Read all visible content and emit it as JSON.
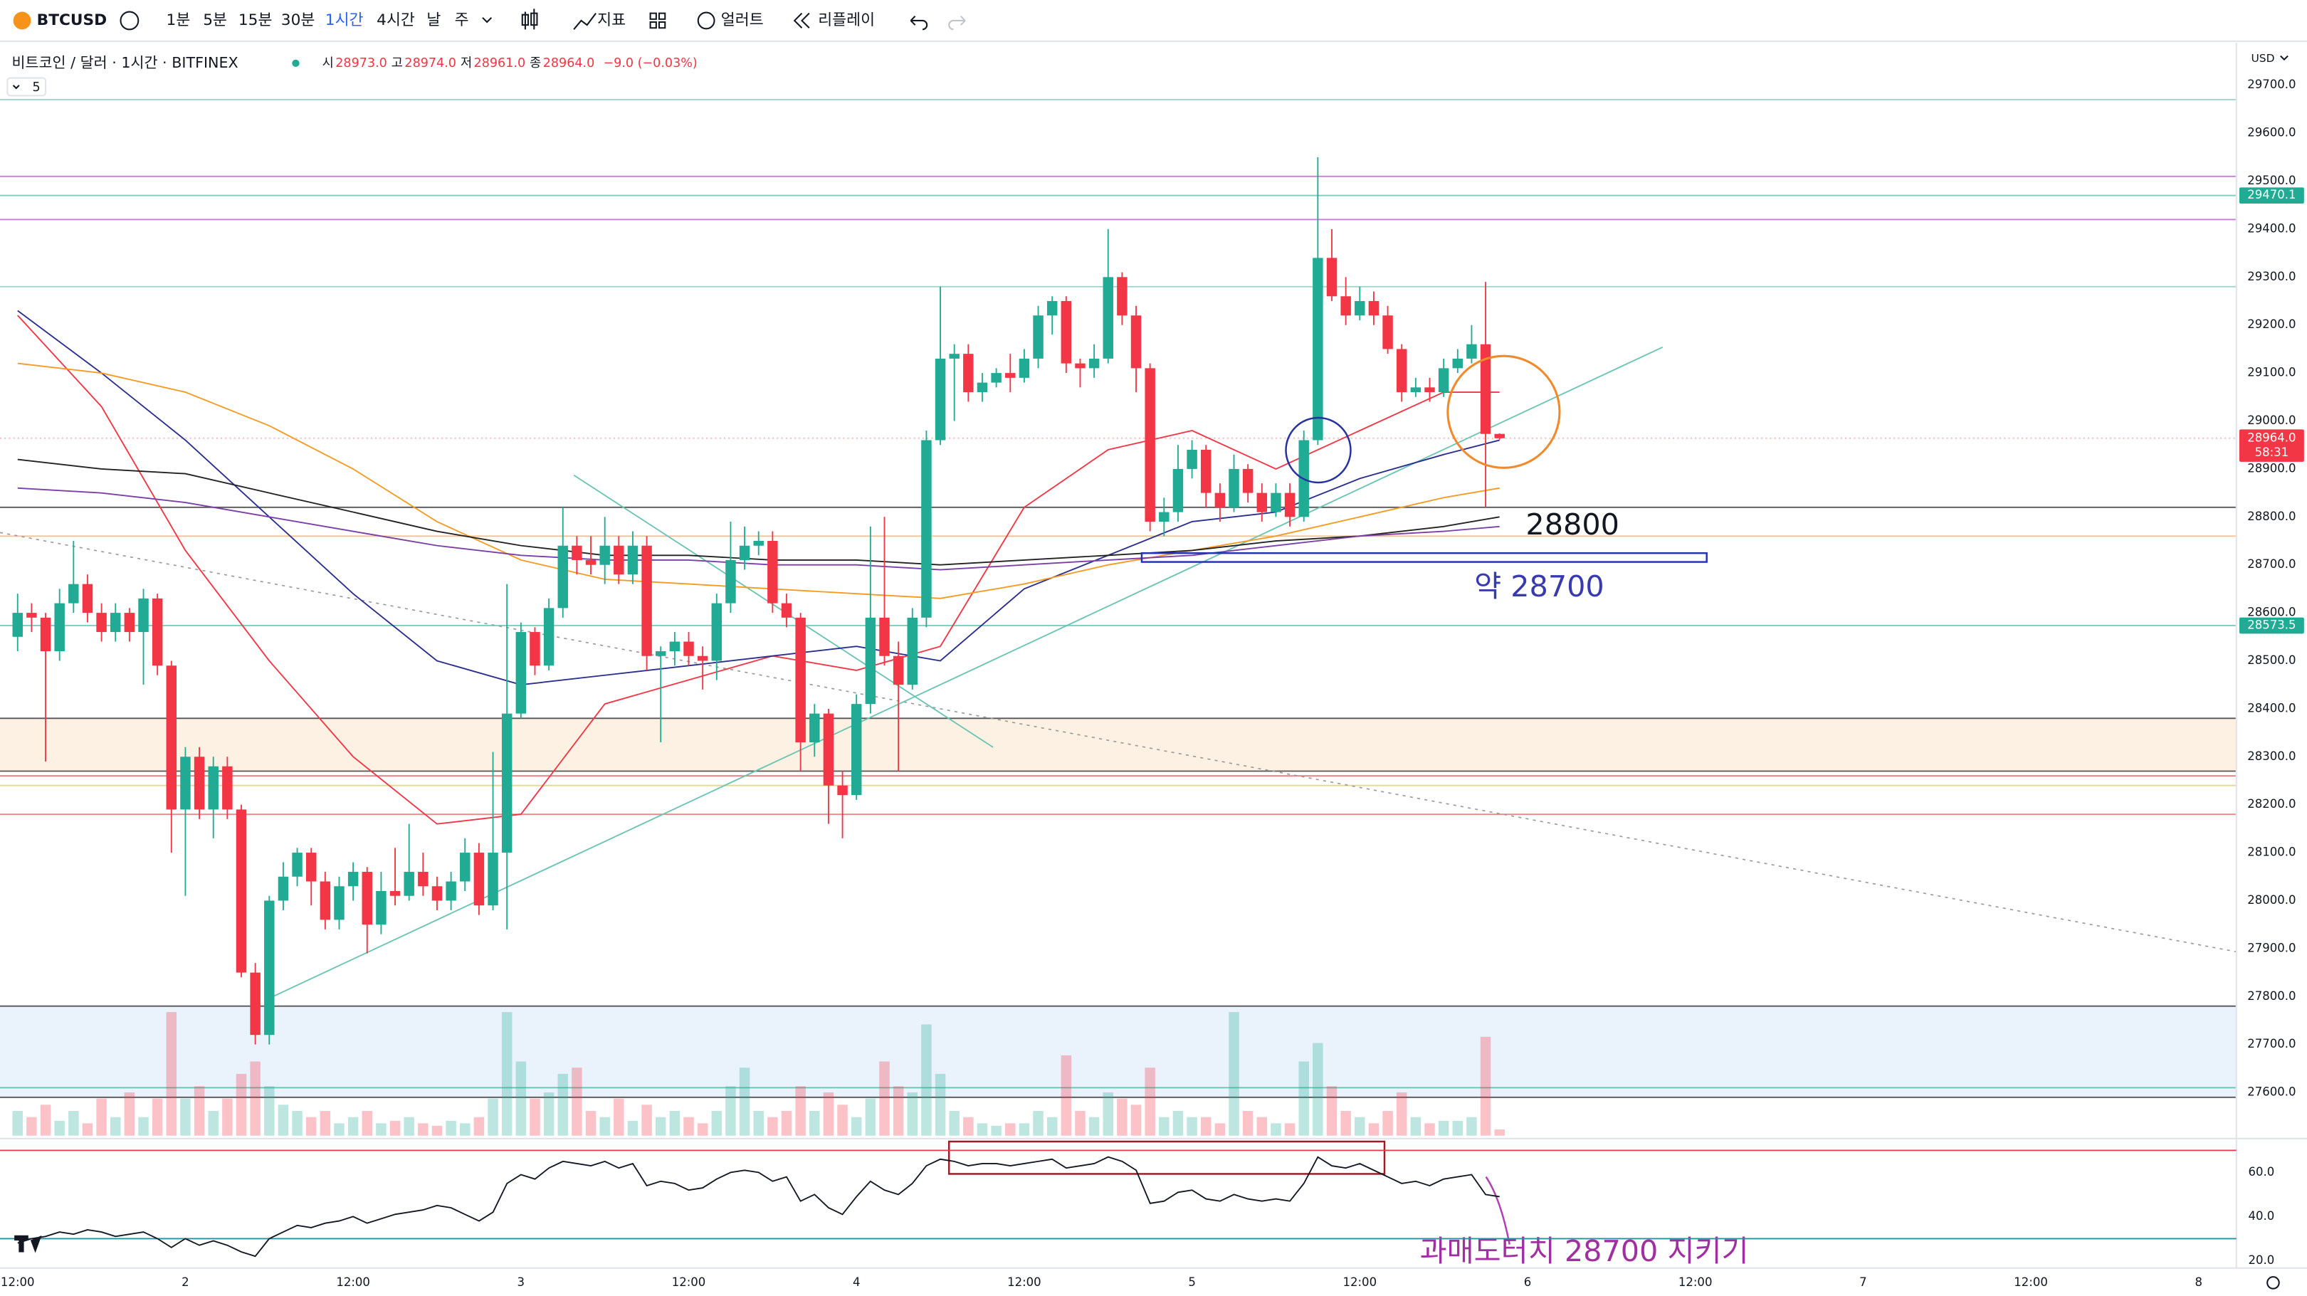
{
  "toolbar": {
    "symbol": "BTCUSD",
    "intervals": [
      "1분",
      "5분",
      "15분",
      "30분",
      "1시간",
      "4시간",
      "날",
      "주"
    ],
    "indicators": "지표",
    "alert": "얼러트",
    "replay": "리플레이"
  },
  "legend": {
    "title": "비트코인 / 달러 · 1시간 · BITFINEX",
    "items": [
      {
        "label": "시",
        "value": "28973.0"
      },
      {
        "label": "고",
        "value": "28974.0"
      },
      {
        "label": "저",
        "value": "28961.0"
      },
      {
        "label": "종",
        "value": "28964.0"
      }
    ],
    "change": "−9.0 (−0.03%)",
    "indicator_count": 5
  },
  "chart_data": {
    "type": "candlestick",
    "currency": "USD",
    "open": [
      28550,
      28600,
      28590,
      28520,
      28620,
      28660,
      28600,
      28560,
      28600,
      28560,
      28630,
      28490,
      28190,
      28300,
      28190,
      28280,
      28190,
      27850,
      27720,
      28000,
      28050,
      28100,
      28040,
      27960,
      28030,
      28060,
      27950,
      28020,
      28010,
      28060,
      28030,
      28000,
      28040,
      28100,
      27990,
      28100,
      28390,
      28560,
      28490,
      28610,
      28740,
      28710,
      28700,
      28740,
      28680,
      28740,
      28510,
      28520,
      28540,
      28510,
      28500,
      28620,
      28710,
      28740,
      28750,
      28620,
      28590,
      28330,
      28390,
      28240,
      28220,
      28410,
      28590,
      28510,
      28450,
      28590,
      28960,
      29130,
      29140,
      29060,
      29080,
      29100,
      29090,
      29130,
      29220,
      29250,
      29120,
      29110,
      29130,
      29300,
      29220,
      29110,
      28790,
      28810,
      28900,
      28940,
      28850,
      28820,
      28900,
      28850,
      28810,
      28850,
      28800,
      28960,
      29340,
      29260,
      29220,
      29250,
      29220,
      29150,
      29060,
      29070,
      29060,
      29110,
      29130,
      29160,
      28973
    ],
    "high": [
      28640,
      28620,
      28600,
      28650,
      28750,
      28680,
      28620,
      28620,
      28610,
      28650,
      28640,
      28500,
      28320,
      28320,
      28300,
      28300,
      28200,
      27870,
      28010,
      28080,
      28110,
      28110,
      28060,
      28050,
      28080,
      28070,
      28060,
      28110,
      28160,
      28100,
      28050,
      28060,
      28130,
      28120,
      28310,
      28660,
      28580,
      28570,
      28630,
      28820,
      28760,
      28760,
      28800,
      28760,
      28770,
      28760,
      28530,
      28560,
      28560,
      28530,
      28640,
      28790,
      28780,
      28770,
      28770,
      28640,
      28600,
      28410,
      28400,
      28270,
      28430,
      28780,
      28800,
      28540,
      28610,
      28980,
      29280,
      29160,
      29160,
      29100,
      29110,
      29140,
      29150,
      29240,
      29260,
      29260,
      29130,
      29160,
      29400,
      29310,
      29240,
      29120,
      28840,
      28950,
      28960,
      28950,
      28870,
      28930,
      28910,
      28870,
      28870,
      28870,
      28980,
      29550,
      29400,
      29300,
      29280,
      29270,
      29240,
      29160,
      29090,
      29090,
      29130,
      29150,
      29200,
      29290,
      28974
    ],
    "low": [
      28520,
      28560,
      28290,
      28500,
      28600,
      28580,
      28540,
      28540,
      28540,
      28450,
      28470,
      28100,
      28010,
      28170,
      28130,
      28170,
      27840,
      27700,
      27700,
      27980,
      28030,
      27990,
      27940,
      27940,
      28000,
      27890,
      27930,
      27990,
      28000,
      28010,
      27980,
      27980,
      28020,
      27970,
      27980,
      27940,
      28380,
      28470,
      28480,
      28590,
      28680,
      28680,
      28660,
      28660,
      28660,
      28480,
      28330,
      28490,
      28490,
      28440,
      28460,
      28600,
      28690,
      28720,
      28600,
      28570,
      28270,
      28300,
      28160,
      28130,
      28210,
      28390,
      28490,
      28270,
      28440,
      28570,
      28950,
      29000,
      29040,
      29040,
      29070,
      29060,
      29080,
      29110,
      29180,
      29100,
      29070,
      29090,
      29120,
      29200,
      29060,
      28770,
      28760,
      28790,
      28880,
      28820,
      28790,
      28810,
      28830,
      28790,
      28800,
      28780,
      28790,
      28950,
      29250,
      29200,
      29210,
      29200,
      29140,
      29040,
      29050,
      29040,
      29050,
      29100,
      29120,
      28820,
      28961
    ],
    "close": [
      28600,
      28590,
      28520,
      28620,
      28660,
      28600,
      28560,
      28600,
      28560,
      28630,
      28490,
      28190,
      28300,
      28190,
      28280,
      28190,
      27850,
      27720,
      28000,
      28050,
      28100,
      28040,
      27960,
      28030,
      28060,
      27950,
      28020,
      28010,
      28060,
      28030,
      28000,
      28040,
      28100,
      27990,
      28100,
      28390,
      28560,
      28490,
      28610,
      28740,
      28710,
      28700,
      28740,
      28680,
      28740,
      28510,
      28520,
      28540,
      28510,
      28500,
      28620,
      28710,
      28740,
      28750,
      28620,
      28590,
      28330,
      28390,
      28240,
      28220,
      28410,
      28590,
      28510,
      28450,
      28590,
      28960,
      29130,
      29140,
      29060,
      29080,
      29100,
      29090,
      29130,
      29220,
      29250,
      29120,
      29110,
      29130,
      29300,
      29220,
      29110,
      28790,
      28810,
      28900,
      28940,
      28850,
      28820,
      28900,
      28850,
      28810,
      28850,
      28800,
      28960,
      29340,
      29260,
      29220,
      29250,
      29220,
      29150,
      29060,
      29070,
      29060,
      29110,
      29130,
      29160,
      28973,
      28964
    ],
    "volume": [
      20,
      15,
      25,
      12,
      20,
      10,
      30,
      15,
      35,
      15,
      30,
      100,
      30,
      40,
      20,
      30,
      50,
      60,
      40,
      25,
      20,
      15,
      20,
      10,
      15,
      20,
      10,
      12,
      15,
      10,
      8,
      12,
      10,
      15,
      30,
      100,
      60,
      30,
      35,
      50,
      55,
      20,
      15,
      30,
      12,
      25,
      15,
      20,
      15,
      10,
      20,
      40,
      55,
      20,
      15,
      20,
      40,
      20,
      35,
      25,
      15,
      30,
      60,
      40,
      35,
      90,
      50,
      20,
      15,
      10,
      8,
      10,
      10,
      20,
      15,
      65,
      20,
      15,
      35,
      30,
      25,
      55,
      15,
      20,
      15,
      15,
      10,
      100,
      20,
      15,
      10,
      10,
      60,
      75,
      40,
      20,
      15,
      10,
      20,
      35,
      15,
      10,
      12,
      12,
      15,
      80,
      5
    ],
    "rsi": [
      28,
      30,
      31,
      33,
      32,
      34,
      33,
      31,
      32,
      33,
      30,
      26,
      30,
      27,
      29,
      27,
      24,
      22,
      30,
      33,
      36,
      35,
      37,
      38,
      40,
      37,
      39,
      41,
      42,
      43,
      45,
      44,
      41,
      38,
      42,
      55,
      59,
      57,
      62,
      65,
      64,
      63,
      65,
      62,
      64,
      54,
      56,
      55,
      52,
      53,
      57,
      60,
      61,
      60,
      56,
      58,
      47,
      50,
      44,
      41,
      49,
      56,
      52,
      50,
      55,
      63,
      66,
      65,
      63,
      64,
      64,
      63,
      64,
      65,
      66,
      62,
      63,
      64,
      67,
      65,
      61,
      46,
      47,
      51,
      52,
      48,
      47,
      50,
      48,
      47,
      48,
      47,
      55,
      67,
      63,
      62,
      64,
      61,
      58,
      55,
      56,
      54,
      57,
      58,
      59,
      50,
      49
    ],
    "ma_x": [
      0,
      6,
      12,
      18,
      24,
      30,
      36,
      42,
      48,
      54,
      60,
      66,
      72,
      78,
      84,
      90,
      96,
      102,
      106
    ],
    "mas": [
      {
        "color": "#f23645",
        "values": [
          29220,
          29030,
          28730,
          28500,
          28300,
          28160,
          28180,
          28410,
          28460,
          28510,
          28480,
          28530,
          28820,
          28940,
          28980,
          28900,
          28980,
          29060,
          29060
        ]
      },
      {
        "color": "#2a2e8f",
        "values": [
          29230,
          29100,
          28960,
          28800,
          28640,
          28500,
          28450,
          28470,
          28490,
          28510,
          28530,
          28500,
          28650,
          28720,
          28790,
          28810,
          28880,
          28930,
          28960
        ]
      },
      {
        "color": "#f59a23",
        "values": [
          29120,
          29100,
          29060,
          28990,
          28900,
          28790,
          28710,
          28670,
          28660,
          28650,
          28640,
          28630,
          28660,
          28700,
          28730,
          28760,
          28800,
          28840,
          28860
        ]
      },
      {
        "color": "#222222",
        "values": [
          28920,
          28900,
          28890,
          28850,
          28810,
          28770,
          28740,
          28720,
          28720,
          28710,
          28710,
          28700,
          28710,
          28720,
          28730,
          28750,
          28760,
          28780,
          28800
        ]
      },
      {
        "color": "#7b3fa8",
        "values": [
          28860,
          28850,
          28830,
          28800,
          28770,
          28740,
          28720,
          28710,
          28710,
          28700,
          28700,
          28690,
          28700,
          28710,
          28720,
          28740,
          28760,
          28770,
          28780
        ]
      }
    ],
    "zones": [
      {
        "from": 28380,
        "to": 28270,
        "color": "#fdf1e3"
      },
      {
        "from": 27780,
        "to": 27590,
        "color": "#eaf2fc"
      }
    ],
    "levels": [
      {
        "value": 29670,
        "color": "#9fd8cb"
      },
      {
        "value": 29510,
        "color": "#c77ddb"
      },
      {
        "value": 29420,
        "color": "#c77ddb"
      },
      {
        "value": 29280,
        "color": "#9fd8cb"
      },
      {
        "value": 28820,
        "color": "#555555"
      },
      {
        "value": 28760,
        "color": "#f5c28a"
      },
      {
        "value": 28380,
        "color": "#555555"
      },
      {
        "value": 28270,
        "color": "#555555"
      },
      {
        "value": 28260,
        "color": "#e08080"
      },
      {
        "value": 28240,
        "color": "#e6d88a"
      },
      {
        "value": 28180,
        "color": "#e88888"
      },
      {
        "value": 27780,
        "color": "#555555"
      },
      {
        "value": 27610,
        "color": "#6cc4b3"
      },
      {
        "value": 27590,
        "color": "#555555"
      }
    ],
    "price_tags": [
      {
        "value": 29470.1,
        "color": "#22ab94"
      },
      {
        "value": 28573.5,
        "color": "#22ab94"
      }
    ],
    "current_price": {
      "value": 28964,
      "label": "28964.0",
      "color": "#f23645"
    },
    "countdown": "58:31",
    "up_color": "#22ab94",
    "down_color": "#f23645",
    "ylim": [
      27510,
      29755
    ],
    "yticks": [
      {
        "value": 29700,
        "label": "29700.0"
      },
      {
        "value": 29600,
        "label": "29600.0"
      },
      {
        "value": 29500,
        "label": "29500.0"
      },
      {
        "value": 29400,
        "label": "29400.0"
      },
      {
        "value": 29300,
        "label": "29300.0"
      },
      {
        "value": 29200,
        "label": "29200.0"
      },
      {
        "value": 29100,
        "label": "29100.0"
      },
      {
        "value": 29000,
        "label": "29000.0"
      },
      {
        "value": 28900,
        "label": "28900.0"
      },
      {
        "value": 28800,
        "label": "28800.0"
      },
      {
        "value": 28700,
        "label": "28700.0"
      },
      {
        "value": 28600,
        "label": "28600.0"
      },
      {
        "value": 28500,
        "label": "28500.0"
      },
      {
        "value": 28400,
        "label": "28400.0"
      },
      {
        "value": 28300,
        "label": "28300.0"
      },
      {
        "value": 28200,
        "label": "28200.0"
      },
      {
        "value": 28100,
        "label": "28100.0"
      },
      {
        "value": 28000,
        "label": "28000.0"
      },
      {
        "value": 27900,
        "label": "27900.0"
      },
      {
        "value": 27800,
        "label": "27800.0"
      },
      {
        "value": 27700,
        "label": "27700.0"
      },
      {
        "value": 27600,
        "label": "27600.0"
      }
    ],
    "xlim": [
      -1.26,
      158.7
    ],
    "xticks": [
      {
        "value": 0,
        "label": "12:00"
      },
      {
        "value": 12,
        "label": "2"
      },
      {
        "value": 24,
        "label": "12:00"
      },
      {
        "value": 36,
        "label": "3"
      },
      {
        "value": 48,
        "label": "12:00"
      },
      {
        "value": 60,
        "label": "4"
      },
      {
        "value": 72,
        "label": "12:00"
      },
      {
        "value": 84,
        "label": "5"
      },
      {
        "value": 96,
        "label": "12:00"
      },
      {
        "value": 108,
        "label": "6"
      },
      {
        "value": 120,
        "label": "12:00"
      },
      {
        "value": 132,
        "label": "7"
      },
      {
        "value": 144,
        "label": "12:00"
      },
      {
        "value": 156,
        "label": "8"
      }
    ],
    "rsi_ylim": [
      14,
      74
    ],
    "rsi_yticks": [
      {
        "value": 60,
        "label": "60.0"
      },
      {
        "value": 40,
        "label": "40.0"
      },
      {
        "value": 20,
        "label": "20.0"
      }
    ],
    "rsi_levels": [
      {
        "value": 70,
        "color": "#f23645"
      },
      {
        "value": 30,
        "color": "#2a8fa0"
      }
    ],
    "annotations": [
      "28800",
      "약 28700",
      "과매도터치 28700 지키기"
    ]
  }
}
